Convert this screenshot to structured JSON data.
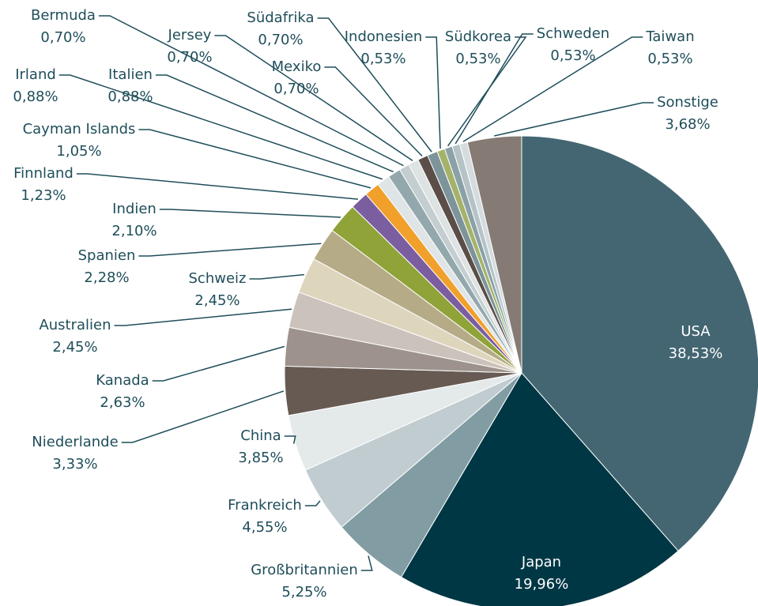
{
  "chart_data": {
    "type": "pie",
    "categories": [
      "USA",
      "Japan",
      "Großbritannien",
      "Frankreich",
      "China",
      "Niederlande",
      "Kanada",
      "Australien",
      "Schweiz",
      "Spanien",
      "Indien",
      "Finnland",
      "Cayman Islands",
      "Irland",
      "Italien",
      "Bermuda",
      "Jersey",
      "Mexiko",
      "Südafrika",
      "Indonesien",
      "Südkorea",
      "Schweden",
      "Taiwan",
      "Sonstige"
    ],
    "values": [
      38.53,
      19.96,
      5.25,
      4.55,
      3.85,
      3.33,
      2.63,
      2.45,
      2.45,
      2.28,
      2.1,
      1.23,
      1.05,
      0.88,
      0.88,
      0.7,
      0.7,
      0.7,
      0.7,
      0.53,
      0.53,
      0.53,
      0.53,
      3.68
    ],
    "value_labels": [
      "38,53%",
      "19,96%",
      "5,25%",
      "4,55%",
      "3,85%",
      "3,33%",
      "2,63%",
      "2,45%",
      "2,45%",
      "2,28%",
      "2,10%",
      "1,23%",
      "1,05%",
      "0,88%",
      "0,88%",
      "0,70%",
      "0,70%",
      "0,70%",
      "0,70%",
      "0,53%",
      "0,53%",
      "0,53%",
      "0,53%",
      "3,68%"
    ],
    "colors": [
      "#436672",
      "#003745",
      "#819da3",
      "#c0ccd0",
      "#e4e9ea",
      "#675a53",
      "#9d938c",
      "#cbc3bb",
      "#ded5bd",
      "#b6ab87",
      "#8fa338",
      "#7b5ea0",
      "#f0a02b",
      "#dfe4e6",
      "#93a8ad",
      "#c4ced1",
      "#dde2e3",
      "#5b4e48",
      "#7d949a",
      "#a5b36a",
      "#8aa1a7",
      "#b5c3c7",
      "#d4dcde",
      "#857a74"
    ]
  }
}
